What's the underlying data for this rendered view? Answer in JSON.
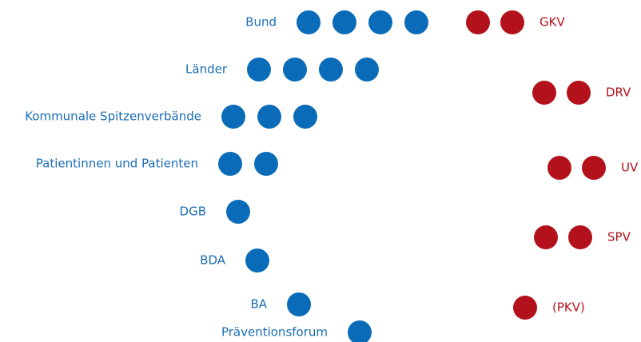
{
  "left_groups": [
    {
      "label": "Bund",
      "count": 4
    },
    {
      "label": "Länder",
      "count": 4
    },
    {
      "label": "Kommunale Spitzenverbände",
      "count": 3
    },
    {
      "label": "Patientinnen und Patienten",
      "count": 2
    },
    {
      "label": "DGB",
      "count": 1
    },
    {
      "label": "BDA",
      "count": 1
    },
    {
      "label": "BA",
      "count": 1
    },
    {
      "label": "Präventionsforum",
      "count": 1
    }
  ],
  "right_groups": [
    {
      "label": "GKV",
      "count": 2
    },
    {
      "label": "DRV",
      "count": 2
    },
    {
      "label": "UV",
      "count": 2
    },
    {
      "label": "SPV",
      "count": 2
    },
    {
      "label": "(PKV)",
      "count": 1
    }
  ]
}
